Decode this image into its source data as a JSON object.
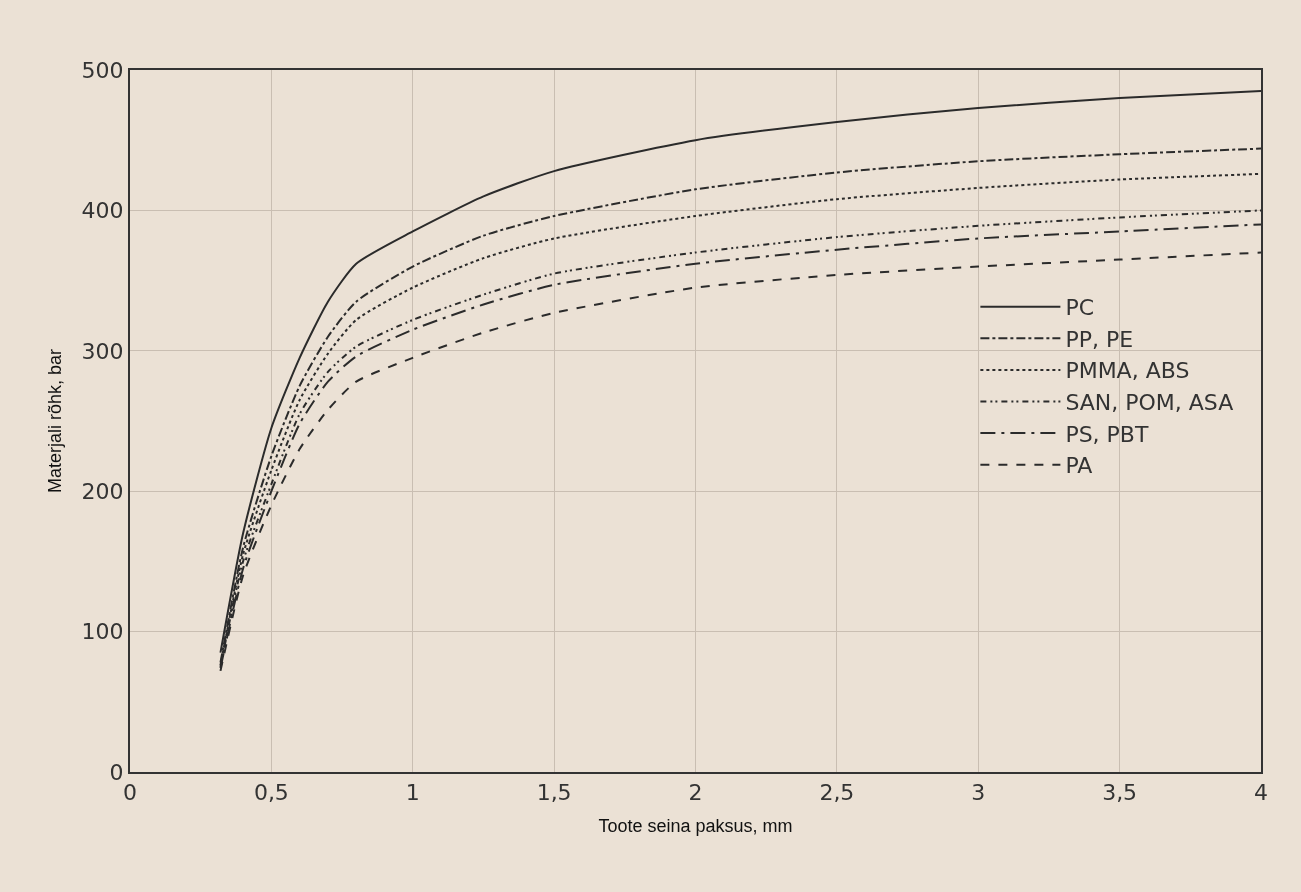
{
  "chart_data": {
    "type": "line",
    "xlabel": "Toote seina paksus, mm",
    "ylabel": "Materjali rõhk, bar",
    "x": [
      0.32,
      0.4,
      0.5,
      0.6,
      0.7,
      0.8,
      1.0,
      1.25,
      1.5,
      2,
      2.5,
      3,
      3.5,
      4
    ],
    "series": [
      {
        "name": "PC",
        "color": "#2b2b2b",
        "line_style": "solid",
        "values": [
          85,
          170,
          245,
          295,
          335,
          362,
          385,
          410,
          428,
          450,
          463,
          473,
          480,
          485
        ]
      },
      {
        "name": "PP, PE",
        "color": "#2b2b2b",
        "line_style": "dashdot",
        "values": [
          78,
          160,
          225,
          275,
          310,
          335,
          360,
          382,
          396,
          415,
          427,
          435,
          440,
          444
        ]
      },
      {
        "name": "PMMA, ABS",
        "color": "#2b2b2b",
        "line_style": "dotted",
        "values": [
          76,
          155,
          215,
          265,
          298,
          322,
          345,
          366,
          380,
          396,
          408,
          416,
          422,
          426
        ]
      },
      {
        "name": "SAN, POM, ASA",
        "color": "#2b2b2b",
        "line_style": "dashdotdot",
        "values": [
          75,
          150,
          205,
          255,
          285,
          303,
          322,
          340,
          355,
          370,
          381,
          389,
          395,
          400
        ]
      },
      {
        "name": "PS, PBT",
        "color": "#2b2b2b",
        "line_style": "longdashdot",
        "values": [
          74,
          145,
          200,
          248,
          278,
          296,
          315,
          333,
          347,
          362,
          372,
          380,
          385,
          390
        ]
      },
      {
        "name": "PA",
        "color": "#2b2b2b",
        "line_style": "dashed",
        "values": [
          72,
          140,
          190,
          230,
          258,
          278,
          295,
          313,
          327,
          345,
          354,
          360,
          365,
          370
        ]
      }
    ],
    "xlim": [
      0,
      4
    ],
    "ylim": [
      0,
      500
    ],
    "xticks": [
      0,
      {
        "value": 0.5,
        "label": "0,5"
      },
      1,
      {
        "value": 1.5,
        "label": "1,5"
      },
      2,
      {
        "value": 2.5,
        "label": "2,5"
      },
      3,
      {
        "value": 3.5,
        "label": "3,5"
      },
      4
    ],
    "yticks": [
      0,
      100,
      200,
      300,
      400,
      500
    ],
    "grid": true,
    "legend": "right",
    "marker": "none"
  }
}
